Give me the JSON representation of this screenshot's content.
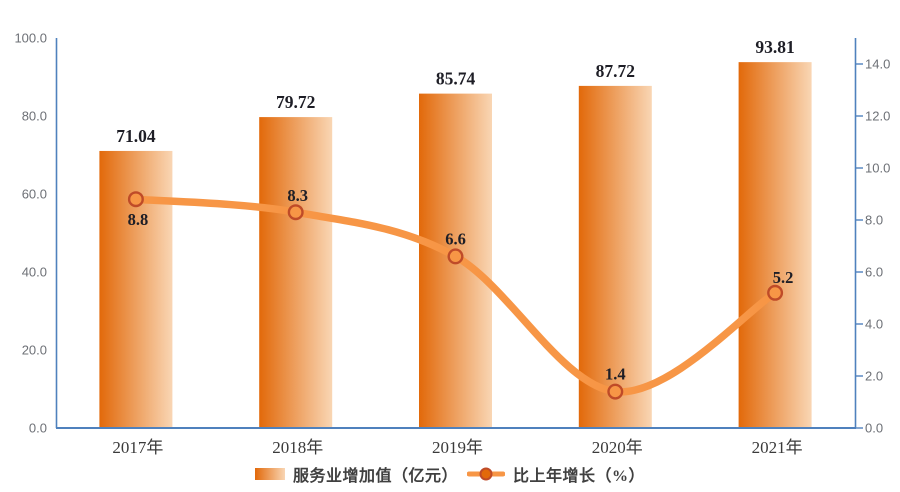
{
  "chart_data": {
    "type": "bar",
    "subtype": "bar-line-combo",
    "categories": [
      "2017年",
      "2018年",
      "2019年",
      "2020年",
      "2021年"
    ],
    "series": [
      {
        "name": "服务业增加值（亿元）",
        "type": "bar",
        "axis": "left",
        "values": [
          71.04,
          79.72,
          85.74,
          87.72,
          93.81
        ],
        "data_labels": [
          "71.04",
          "79.72",
          "85.74",
          "87.72",
          "93.81"
        ]
      },
      {
        "name": "比上年增长（%）",
        "type": "line",
        "axis": "right",
        "smooth": true,
        "values": [
          8.8,
          8.3,
          6.6,
          1.4,
          5.2
        ],
        "data_labels": [
          "8.8",
          "8.3",
          "6.6",
          "1.4",
          "5.2"
        ]
      }
    ],
    "left_axis": {
      "min": 0,
      "max": 100,
      "step": 20,
      "tick_labels": [
        "0.0",
        "20.0",
        "40.0",
        "60.0",
        "80.0",
        "100.0"
      ]
    },
    "right_axis": {
      "min": 0,
      "max": 15,
      "step": 2,
      "tick_labels": [
        "0.0",
        "2.0",
        "4.0",
        "6.0",
        "8.0",
        "10.0",
        "12.0",
        "14.0"
      ]
    },
    "grid": false,
    "legend_position": "bottom"
  },
  "legend": {
    "items": [
      {
        "label": "服务业增加值（亿元）",
        "swatch": "bar-gradient"
      },
      {
        "label": "比上年增长（%）",
        "swatch": "line-marker"
      }
    ]
  },
  "colors": {
    "bar_gradient_start": "#e2690a",
    "bar_gradient_end": "#f9d6b4",
    "line": "#f79646",
    "marker_fill": "#f79646",
    "marker_stroke": "#bf4b28",
    "axis": "#4f81bd",
    "tick_label": "#6d7076",
    "value_label": "#1e1e26",
    "category_label": "#3a3a3a",
    "legend_text": "#404040",
    "background": "#ffffff"
  }
}
